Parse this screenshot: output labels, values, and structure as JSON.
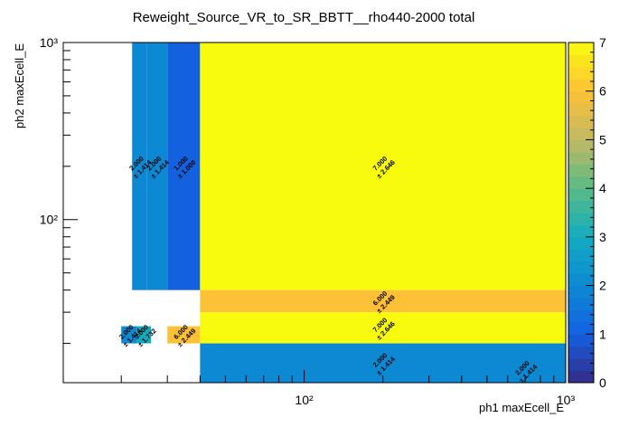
{
  "chart_data": {
    "type": "heatmap",
    "title": "Reweight_Source_VR_to_SR_BBTT__rho440-2000 total",
    "xlabel": "ph1 maxEcell_E",
    "ylabel": "ph2 maxEcell_E",
    "x_scale": "log",
    "y_scale": "log",
    "xlim": [
      12,
      1000
    ],
    "ylim": [
      12,
      1000
    ],
    "zlim": [
      0,
      7
    ],
    "x_ticks": [
      {
        "value": 100,
        "label": "10²"
      },
      {
        "value": 1000,
        "label": "10³"
      }
    ],
    "y_ticks": [
      {
        "value": 100,
        "label": "10²"
      },
      {
        "value": 1000,
        "label": "10³"
      }
    ],
    "palette_ticks": [
      "0",
      "1",
      "2",
      "3",
      "4",
      "5",
      "6",
      "7"
    ],
    "bins": [
      {
        "x": [
          22,
          25
        ],
        "y": [
          40,
          1000
        ],
        "value": 2.0,
        "text": "2.000",
        "err": "± 1.414"
      },
      {
        "x": [
          25,
          30
        ],
        "y": [
          40,
          1000
        ],
        "value": 2.0,
        "text": "2.000",
        "err": "± 1.414"
      },
      {
        "x": [
          30,
          40
        ],
        "y": [
          40,
          1000
        ],
        "value": 1.0,
        "text": "1.000",
        "err": "± 1.000"
      },
      {
        "x": [
          40,
          1000
        ],
        "y": [
          40,
          1000
        ],
        "value": 7.0,
        "text": "7.000",
        "err": "± 2.646"
      },
      {
        "x": [
          40,
          1000
        ],
        "y": [
          30,
          40
        ],
        "value": 6.0,
        "text": "6.000",
        "err": "± 2.449"
      },
      {
        "x": [
          40,
          1000
        ],
        "y": [
          20,
          30
        ],
        "value": 7.0,
        "text": "7.000",
        "err": "± 2.646"
      },
      {
        "x": [
          40,
          1000
        ],
        "y": [
          12,
          20
        ],
        "value": 2.0,
        "text": "2.000",
        "err": "± 1.414"
      },
      {
        "x": [
          20,
          23
        ],
        "y": [
          20,
          25
        ],
        "value": 2.0,
        "text": "2.000",
        "err": "± 1.414"
      },
      {
        "x": [
          23,
          26
        ],
        "y": [
          20,
          25
        ],
        "value": 3.0,
        "text": "3.000",
        "err": "± 1.732"
      },
      {
        "x": [
          30,
          40
        ],
        "y": [
          20,
          25
        ],
        "value": 6.0,
        "text": "6.000",
        "err": "± 2.449"
      }
    ],
    "extra_labels": [
      {
        "x": 700,
        "y": 14,
        "text": "2.000",
        "err": "± 1.414"
      }
    ]
  }
}
